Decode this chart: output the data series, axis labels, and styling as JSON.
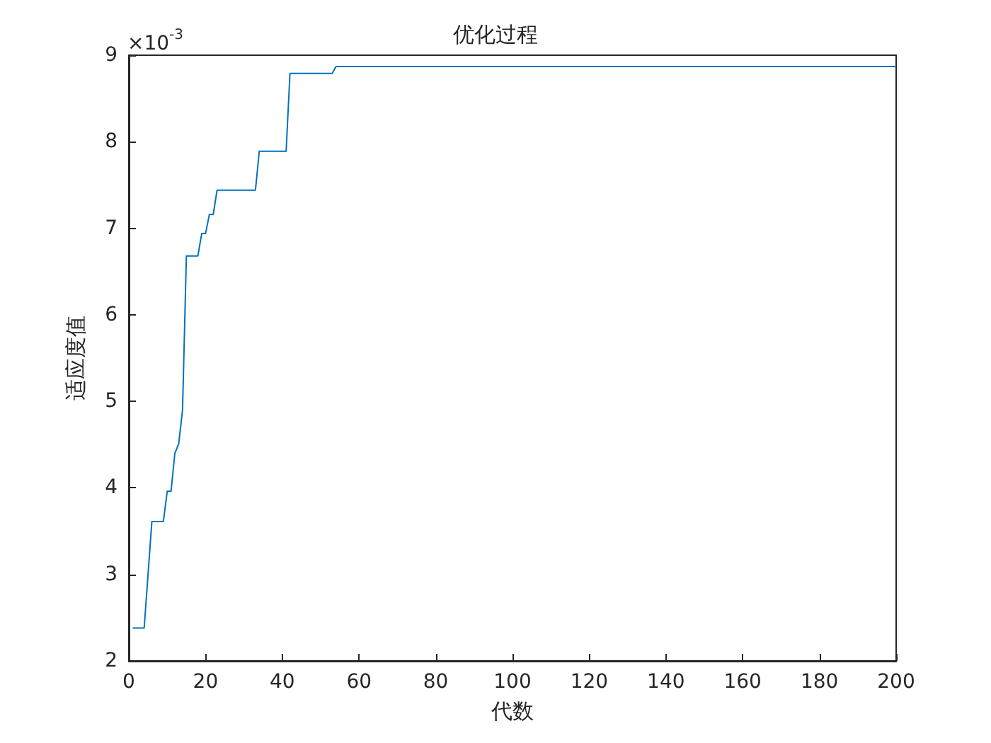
{
  "chart_data": {
    "type": "line",
    "title": "优化过程",
    "xlabel": "代数",
    "ylabel": "适应度值",
    "annotations": [
      "×10$^{-3}$"
    ],
    "series": [
      {
        "color": "#0072bd",
        "x": [
          1,
          4,
          6,
          9,
          10,
          11,
          12,
          13,
          14,
          15,
          18,
          19,
          20,
          21,
          22,
          23,
          33,
          34,
          41,
          42,
          53,
          54,
          200
        ],
        "values": [
          2.38,
          2.38,
          3.61,
          3.61,
          3.96,
          3.96,
          4.4,
          4.51,
          4.9,
          6.68,
          6.68,
          6.94,
          6.94,
          7.16,
          7.16,
          7.44,
          7.44,
          7.89,
          7.89,
          8.79,
          8.79,
          8.87,
          8.87
        ]
      }
    ],
    "xlim": [
      0,
      200
    ],
    "xticks": [
      0,
      20,
      40,
      60,
      80,
      100,
      120,
      140,
      160,
      180,
      200
    ],
    "ylim": [
      2,
      9
    ],
    "yticks": [
      2,
      3,
      4,
      5,
      6,
      7,
      8,
      9
    ],
    "grid": false,
    "marker": "none",
    "line_style": "solid"
  }
}
